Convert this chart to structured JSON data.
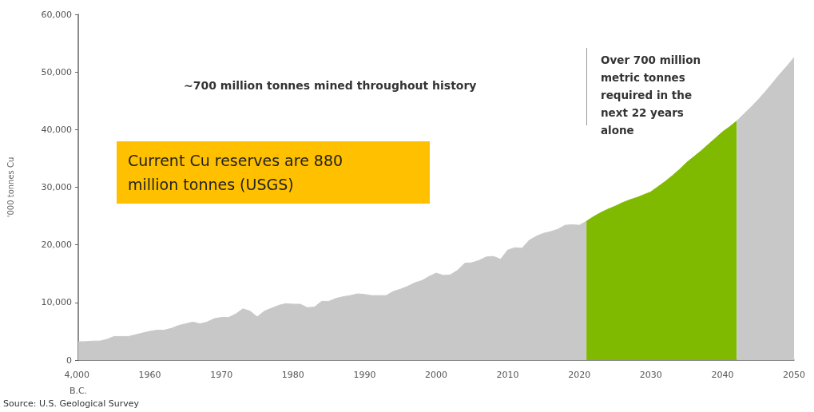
{
  "chart_data": {
    "type": "area",
    "ylabel": "'000 tonnes Cu",
    "categories": [
      "4,000 B.C.",
      null,
      null,
      null,
      null,
      null,
      null,
      null,
      null,
      null,
      "1960",
      null,
      null,
      null,
      null,
      null,
      null,
      null,
      null,
      null,
      "1970",
      null,
      null,
      null,
      null,
      null,
      null,
      null,
      null,
      null,
      "1980",
      null,
      null,
      null,
      null,
      null,
      null,
      null,
      null,
      null,
      "1990",
      null,
      null,
      null,
      null,
      null,
      null,
      null,
      null,
      null,
      "2000",
      null,
      null,
      null,
      null,
      null,
      null,
      null,
      null,
      null,
      "2010",
      null,
      null,
      null,
      null,
      null,
      null,
      null,
      null,
      null,
      "2020",
      null,
      null,
      null,
      null,
      null,
      null,
      null,
      null,
      null,
      "2030",
      null,
      null,
      null,
      null,
      null,
      null,
      null,
      null,
      null,
      "2040",
      null,
      null,
      null,
      null,
      null,
      null,
      null,
      null,
      null,
      "2050"
    ],
    "series": [
      {
        "color": "#c8c8c8",
        "values": [
          3200,
          3200,
          3300,
          3300,
          3600,
          4100,
          4100,
          4100,
          4400,
          4700,
          5000,
          5200,
          5200,
          5500,
          6000,
          6300,
          6600,
          6300,
          6600,
          7200,
          7400,
          7400,
          8000,
          8900,
          8500,
          7500,
          8500,
          9000,
          9500,
          9800,
          9700,
          9700,
          9100,
          9200,
          10200,
          10200,
          10700,
          11000,
          11200,
          11500,
          11400,
          11200,
          11200,
          11200,
          11900,
          12300,
          12800,
          13400,
          13800,
          14500,
          15100,
          14700,
          14800,
          15600,
          16800,
          16900,
          17300,
          17900,
          18000,
          17500,
          19100,
          19500,
          19400,
          20800,
          21500,
          22000,
          22300,
          22700,
          23400,
          23500,
          23400,
          24100,
          null,
          null,
          null,
          null,
          null,
          null,
          null,
          null,
          null,
          null,
          null,
          null,
          null,
          null,
          null,
          null,
          null,
          null,
          null,
          null,
          null,
          null,
          null,
          null,
          null,
          null,
          null,
          null,
          null
        ]
      },
      {
        "color": "#7fba00",
        "values": [
          null,
          null,
          null,
          null,
          null,
          null,
          null,
          null,
          null,
          null,
          null,
          null,
          null,
          null,
          null,
          null,
          null,
          null,
          null,
          null,
          null,
          null,
          null,
          null,
          null,
          null,
          null,
          null,
          null,
          null,
          null,
          null,
          null,
          null,
          null,
          null,
          null,
          null,
          null,
          null,
          null,
          null,
          null,
          null,
          null,
          null,
          null,
          null,
          null,
          null,
          null,
          null,
          null,
          null,
          null,
          null,
          null,
          null,
          null,
          null,
          null,
          null,
          null,
          null,
          null,
          null,
          null,
          null,
          null,
          null,
          null,
          24100,
          24900,
          25600,
          26200,
          26700,
          27300,
          27800,
          28200,
          28700,
          29200,
          30100,
          31000,
          32000,
          33100,
          34300,
          35300,
          36300,
          37400,
          38500,
          39600,
          40500,
          41500,
          null,
          null,
          null,
          null,
          null,
          null,
          null,
          null
        ]
      },
      {
        "color": "#c8c8c8",
        "values": [
          null,
          null,
          null,
          null,
          null,
          null,
          null,
          null,
          null,
          null,
          null,
          null,
          null,
          null,
          null,
          null,
          null,
          null,
          null,
          null,
          null,
          null,
          null,
          null,
          null,
          null,
          null,
          null,
          null,
          null,
          null,
          null,
          null,
          null,
          null,
          null,
          null,
          null,
          null,
          null,
          null,
          null,
          null,
          null,
          null,
          null,
          null,
          null,
          null,
          null,
          null,
          null,
          null,
          null,
          null,
          null,
          null,
          null,
          null,
          null,
          null,
          null,
          null,
          null,
          null,
          null,
          null,
          null,
          null,
          null,
          null,
          null,
          null,
          null,
          null,
          null,
          null,
          null,
          null,
          null,
          null,
          null,
          null,
          null,
          null,
          null,
          null,
          null,
          null,
          null,
          null,
          null,
          41500,
          42700,
          43900,
          45200,
          46600,
          48100,
          49600,
          51000,
          52500
        ]
      }
    ],
    "ylim": [
      0,
      60000
    ],
    "yticks": [
      0,
      {
        "value": 10000,
        "label": "10,000"
      },
      {
        "value": 20000,
        "label": "20,000"
      },
      {
        "value": 30000,
        "label": "30,000"
      },
      {
        "value": 40000,
        "label": "40,000"
      },
      {
        "value": 50000,
        "label": "50,000"
      },
      {
        "value": 60000,
        "label": "60,000"
      }
    ],
    "grid": false,
    "marker": "none",
    "annotations": [
      "~700 million tonnes mined throughout history",
      "Current Cu reserves are 880 million tonnes (USGS)",
      "Over 700 million metric tonnes required in the next 22 years alone",
      "Source: U.S. Geological Survey"
    ]
  }
}
